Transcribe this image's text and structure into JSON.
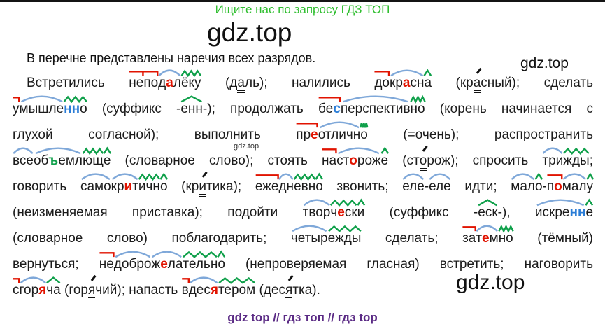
{
  "page": {
    "promo": "Ищите нас по запросу ГДЗ ТОП",
    "logo": "gdz.top",
    "intro": "В перечне представлены наречия всех разрядов.",
    "watermarks": {
      "top_right": "gdz.top",
      "middle": "gdz.top",
      "bottom_right": "gdz.top"
    },
    "footer": "gdz top  //  гдз топ  //  гдз top",
    "colors": {
      "promo_green": "#2fbe2f",
      "footer_purple": "#5b2b85",
      "prefix_red": "#e11300",
      "root_arc_blue": "#7fa8d9",
      "suffix_green": "#0fa04a",
      "letter_red": "#e11300",
      "letter_blue": "#2a7cd6",
      "letter_green": "#0fa04a",
      "text": "#1b1b1b"
    }
  },
  "answer": {
    "lines": [
      {
        "indent": true,
        "seg": [
          {
            "t": "Встретились ",
            "m": []
          },
          {
            "t": "не",
            "m": [
              "pre"
            ]
          },
          {
            "t": "по",
            "m": [
              "pre"
            ]
          },
          {
            "p": [
              {
                "t": "д"
              },
              {
                "t": "а",
                "k": "red"
              },
              {
                "t": "л"
              }
            ],
            "m": [
              "root"
            ]
          },
          {
            "t": "ёку",
            "m": [
              "zig"
            ]
          },
          {
            "t": " (д",
            "m": []
          },
          {
            "t": "а",
            "m": [
              "ul2"
            ]
          },
          {
            "t": "ль); налились ",
            "m": []
          },
          {
            "t": "до",
            "m": [
              "pre"
            ]
          },
          {
            "p": [
              {
                "t": "кр"
              },
              {
                "t": "а",
                "k": "red"
              },
              {
                "t": "сн"
              }
            ],
            "m": [
              "root"
            ]
          },
          {
            "t": "а",
            "m": [
              "suf"
            ]
          },
          {
            "t": " (кр",
            "m": []
          },
          {
            "t": "а",
            "m": [
              "acc",
              "ul2"
            ]
          },
          {
            "t": "сный); сделать",
            "m": []
          }
        ]
      },
      {
        "seg": [
          {
            "t": "у",
            "m": [
              "pre"
            ]
          },
          {
            "t": "мышле",
            "m": [
              "root"
            ]
          },
          {
            "p": [
              {
                "t": "нн",
                "k": "blue"
              },
              {
                "t": "о"
              }
            ],
            "m": [
              "zig"
            ]
          },
          {
            "t": " (суффикс -",
            "m": []
          },
          {
            "t": "енн",
            "m": [
              "suf"
            ]
          },
          {
            "t": "-); продолжать ",
            "m": []
          },
          {
            "p": [
              {
                "t": "бе"
              },
              {
                "t": "с",
                "k": "blue"
              }
            ],
            "m": [
              "pre"
            ]
          },
          {
            "t": "перспектив",
            "m": [
              "root"
            ]
          },
          {
            "t": "но",
            "m": [
              "zig"
            ]
          },
          {
            "t": " (корень начинается с",
            "m": []
          }
        ]
      },
      {
        "seg": [
          {
            "t": "глухой согласной); выполнить ",
            "m": []
          },
          {
            "p": [
              {
                "t": "пр"
              },
              {
                "t": "е",
                "k": "red"
              }
            ],
            "m": [
              "pre"
            ]
          },
          {
            "t": "отличн",
            "m": [
              "root"
            ]
          },
          {
            "t": "о",
            "m": [
              "zig"
            ]
          },
          {
            "t": " (=очень); распространить",
            "m": []
          }
        ]
      },
      {
        "seg": [
          {
            "t": "все",
            "m": [
              "root"
            ]
          },
          {
            "p": [
              {
                "t": "об"
              },
              {
                "t": "ъ",
                "k": "green"
              },
              {
                "t": "емл"
              }
            ],
            "m": [
              "root"
            ]
          },
          {
            "t": "ющ",
            "m": [
              "zig"
            ]
          },
          {
            "t": "е",
            "m": [
              "suf"
            ]
          },
          {
            "t": " (словарное слово); стоять ",
            "m": []
          },
          {
            "t": "на",
            "m": [
              "pre"
            ]
          },
          {
            "p": [
              {
                "t": "ст"
              },
              {
                "t": "о",
                "k": "red"
              },
              {
                "t": "рож"
              }
            ],
            "m": [
              "root"
            ]
          },
          {
            "t": "е",
            "m": [
              "suf"
            ]
          },
          {
            "t": " (ст",
            "m": []
          },
          {
            "t": "о",
            "m": [
              "acc",
              "ul2"
            ]
          },
          {
            "t": "рож); спросить ",
            "m": []
          },
          {
            "t": "три",
            "m": [
              "root"
            ]
          },
          {
            "t": "жды",
            "m": [
              "zig"
            ]
          },
          {
            "t": ";",
            "m": []
          }
        ]
      },
      {
        "seg": [
          {
            "t": "говорить ",
            "m": []
          },
          {
            "t": "само",
            "m": [
              "root"
            ]
          },
          {
            "p": [
              {
                "t": "кр"
              },
              {
                "t": "и",
                "k": "red"
              },
              {
                "t": "т"
              }
            ],
            "m": [
              "root"
            ]
          },
          {
            "t": "ичн",
            "m": [
              "zig"
            ]
          },
          {
            "t": "о",
            "m": [
              "suf"
            ]
          },
          {
            "t": " (кр",
            "m": []
          },
          {
            "t": "и",
            "m": [
              "acc",
              "ul2"
            ]
          },
          {
            "t": "тика); ",
            "m": []
          },
          {
            "t": "еже",
            "m": [
              "pre"
            ]
          },
          {
            "t": "дн",
            "m": [
              "root"
            ]
          },
          {
            "t": "евн",
            "m": [
              "zig"
            ]
          },
          {
            "t": "о",
            "m": [
              "suf"
            ]
          },
          {
            "t": " звонить; ",
            "m": []
          },
          {
            "t": "еле",
            "m": [
              "root"
            ]
          },
          {
            "t": "-",
            "m": []
          },
          {
            "t": "еле",
            "m": [
              "root"
            ]
          },
          {
            "t": " идти; ",
            "m": []
          },
          {
            "t": "мал",
            "m": [
              "root"
            ]
          },
          {
            "t": "о",
            "m": [
              "suf"
            ]
          },
          {
            "t": "-",
            "m": []
          },
          {
            "p": [
              {
                "t": "п"
              },
              {
                "t": "о",
                "k": "red"
              }
            ],
            "m": [
              "pre"
            ]
          },
          {
            "t": "мал",
            "m": [
              "root"
            ]
          },
          {
            "t": "у",
            "m": [
              "suf"
            ]
          }
        ]
      },
      {
        "seg": [
          {
            "t": "(неизменяемая приставка); подойти ",
            "m": []
          },
          {
            "t": "твор",
            "m": [
              "root"
            ]
          },
          {
            "p": [
              {
                "t": "ч"
              },
              {
                "t": "е",
                "k": "red"
              },
              {
                "t": "ск"
              }
            ],
            "m": [
              "zig"
            ]
          },
          {
            "t": "и",
            "m": [
              "suf"
            ]
          },
          {
            "t": " (суффикс -",
            "m": []
          },
          {
            "t": "еск",
            "m": [
              "suf"
            ]
          },
          {
            "t": "-), ",
            "m": []
          },
          {
            "p": [
              {
                "t": "искре"
              },
              {
                "t": "нн",
                "k": "blue"
              }
            ],
            "m": [
              "root"
            ]
          },
          {
            "t": "е",
            "m": [
              "suf"
            ]
          }
        ]
      },
      {
        "seg": [
          {
            "t": "(словарное слово) поблагодарить; ",
            "m": []
          },
          {
            "t": "четыр",
            "m": [
              "root"
            ]
          },
          {
            "t": "ежды",
            "m": [
              "zig"
            ]
          },
          {
            "t": " сделать; ",
            "m": []
          },
          {
            "t": "за",
            "m": [
              "pre"
            ]
          },
          {
            "p": [
              {
                "t": "т"
              },
              {
                "t": "е",
                "k": "red"
              },
              {
                "t": "м"
              }
            ],
            "m": [
              "root"
            ]
          },
          {
            "t": "но",
            "m": [
              "zig"
            ]
          },
          {
            "t": " (т",
            "m": []
          },
          {
            "t": "ё",
            "m": [
              "ul2"
            ]
          },
          {
            "t": "мный)",
            "m": []
          }
        ]
      },
      {
        "seg": [
          {
            "t": "вернуться; ",
            "m": []
          },
          {
            "t": "не",
            "m": [
              "pre"
            ]
          },
          {
            "t": "добро",
            "m": [
              "root"
            ]
          },
          {
            "p": [
              {
                "t": "ж"
              },
              {
                "t": "е",
                "k": "red"
              },
              {
                "t": "ла"
              }
            ],
            "m": [
              "root"
            ]
          },
          {
            "t": "тельн",
            "m": [
              "zig"
            ]
          },
          {
            "t": "о",
            "m": [
              "suf"
            ]
          },
          {
            "t": " (непроверяемая гласная) встретить; наговорить",
            "m": []
          }
        ]
      },
      {
        "justify": false,
        "seg": [
          {
            "t": "с",
            "m": [
              "pre"
            ]
          },
          {
            "p": [
              {
                "t": "гор"
              },
              {
                "t": "я",
                "k": "red"
              }
            ],
            "m": [
              "root"
            ]
          },
          {
            "t": "ча",
            "m": [
              "suf"
            ]
          },
          {
            "t": " (гор",
            "m": []
          },
          {
            "t": "я",
            "m": [
              "acc",
              "ul2"
            ]
          },
          {
            "t": "чий); напасть ",
            "m": []
          },
          {
            "t": "в",
            "m": [
              "pre"
            ]
          },
          {
            "p": [
              {
                "t": "дес"
              },
              {
                "t": "я",
                "k": "red"
              }
            ],
            "m": [
              "root"
            ]
          },
          {
            "t": "тером",
            "m": [
              "zig"
            ]
          },
          {
            "t": " (дес",
            "m": []
          },
          {
            "t": "я",
            "m": [
              "acc",
              "ul2"
            ]
          },
          {
            "t": "тка).",
            "m": []
          }
        ]
      }
    ]
  }
}
